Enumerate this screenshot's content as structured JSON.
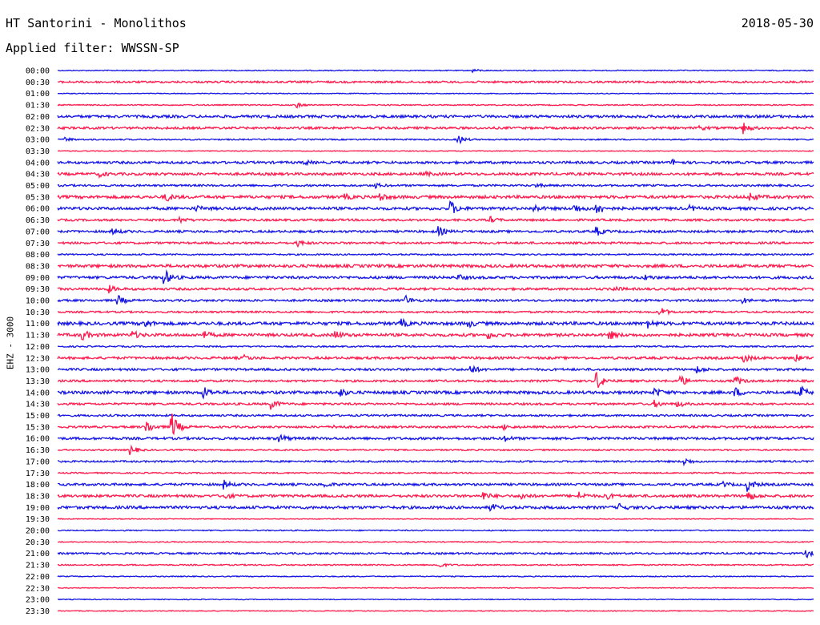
{
  "header": {
    "station": "HT Santorini - Monolithos",
    "date": "2018-05-30",
    "filter": "Applied filter: WWSSN-SP",
    "channel": "EHZ - 3000"
  },
  "colors": {
    "blue": "#1414e6",
    "red": "#ff1a4d"
  },
  "chart_data": {
    "type": "line",
    "title": "HT Santorini - Monolithos",
    "ylabel": "EHZ - 3000",
    "row_labels": [
      "00:00",
      "00:30",
      "01:00",
      "01:30",
      "02:00",
      "02:30",
      "03:00",
      "03:30",
      "04:00",
      "04:30",
      "05:00",
      "05:30",
      "06:00",
      "06:30",
      "07:00",
      "07:30",
      "08:00",
      "08:30",
      "09:00",
      "09:30",
      "10:00",
      "10:30",
      "11:00",
      "11:30",
      "12:00",
      "12:30",
      "13:00",
      "13:30",
      "14:00",
      "14:30",
      "15:00",
      "15:30",
      "16:00",
      "16:30",
      "17:00",
      "17:30",
      "18:00",
      "18:30",
      "19:00",
      "19:30",
      "20:00",
      "20:30",
      "21:00",
      "21:30",
      "22:00",
      "22:30",
      "23:00",
      "23:30"
    ],
    "row_minutes": 30,
    "noise": [
      0.6,
      1.2,
      0.5,
      0.7,
      1.6,
      1.4,
      0.8,
      0.5,
      1.5,
      1.6,
      1.2,
      1.8,
      1.7,
      1.3,
      1.4,
      1.3,
      0.9,
      1.8,
      1.6,
      1.4,
      1.3,
      1.1,
      1.9,
      1.8,
      0.9,
      1.5,
      1.4,
      1.3,
      1.8,
      1.3,
      1.2,
      1.3,
      1.5,
      0.9,
      1.1,
      0.8,
      1.4,
      1.6,
      1.7,
      0.5,
      0.7,
      0.6,
      1.1,
      0.8,
      0.6,
      0.5,
      0.5,
      0.5
    ],
    "events": [
      {
        "row": 0,
        "min": 16.5,
        "amp": 2
      },
      {
        "row": 3,
        "min": 9.5,
        "amp": 3
      },
      {
        "row": 5,
        "min": 27.2,
        "amp": 7
      },
      {
        "row": 5,
        "min": 25.5,
        "amp": 2
      },
      {
        "row": 6,
        "min": 15.9,
        "amp": 6
      },
      {
        "row": 6,
        "min": 0.3,
        "amp": 2.5
      },
      {
        "row": 8,
        "min": 9.8,
        "amp": 2.5
      },
      {
        "row": 8,
        "min": 24.4,
        "amp": 3
      },
      {
        "row": 9,
        "min": 1.7,
        "amp": 2.5
      },
      {
        "row": 9,
        "min": 14.6,
        "amp": 2
      },
      {
        "row": 10,
        "min": 12.6,
        "amp": 3
      },
      {
        "row": 10,
        "min": 19.0,
        "amp": 2
      },
      {
        "row": 11,
        "min": 4.3,
        "amp": 5
      },
      {
        "row": 11,
        "min": 11.4,
        "amp": 3
      },
      {
        "row": 11,
        "min": 12.8,
        "amp": 5
      },
      {
        "row": 11,
        "min": 27.5,
        "amp": 5
      },
      {
        "row": 12,
        "min": 15.6,
        "amp": 9
      },
      {
        "row": 12,
        "min": 18.9,
        "amp": 4
      },
      {
        "row": 12,
        "min": 20.5,
        "amp": 6
      },
      {
        "row": 12,
        "min": 21.4,
        "amp": 9
      },
      {
        "row": 12,
        "min": 25.1,
        "amp": 3
      },
      {
        "row": 12,
        "min": 5.5,
        "amp": 3
      },
      {
        "row": 13,
        "min": 4.8,
        "amp": 4
      },
      {
        "row": 13,
        "min": 17.1,
        "amp": 5
      },
      {
        "row": 14,
        "min": 2.2,
        "amp": 4
      },
      {
        "row": 14,
        "min": 15.1,
        "amp": 6
      },
      {
        "row": 14,
        "min": 21.4,
        "amp": 5
      },
      {
        "row": 15,
        "min": 9.5,
        "amp": 4
      },
      {
        "row": 18,
        "min": 4.2,
        "amp": 12
      },
      {
        "row": 18,
        "min": 15.9,
        "amp": 3
      },
      {
        "row": 18,
        "min": 23.3,
        "amp": 3
      },
      {
        "row": 19,
        "min": 2.0,
        "amp": 5
      },
      {
        "row": 19,
        "min": 22.1,
        "amp": 3
      },
      {
        "row": 20,
        "min": 2.4,
        "amp": 6
      },
      {
        "row": 20,
        "min": 13.8,
        "amp": 6
      },
      {
        "row": 20,
        "min": 27.2,
        "amp": 3
      },
      {
        "row": 21,
        "min": 23.9,
        "amp": 7
      },
      {
        "row": 22,
        "min": 3.4,
        "amp": 6
      },
      {
        "row": 22,
        "min": 13.6,
        "amp": 6
      },
      {
        "row": 22,
        "min": 16.3,
        "amp": 4
      },
      {
        "row": 22,
        "min": 23.4,
        "amp": 5
      },
      {
        "row": 23,
        "min": 1.0,
        "amp": 6
      },
      {
        "row": 23,
        "min": 3.0,
        "amp": 4
      },
      {
        "row": 23,
        "min": 5.8,
        "amp": 4
      },
      {
        "row": 23,
        "min": 11.0,
        "amp": 5
      },
      {
        "row": 23,
        "min": 17.1,
        "amp": 4
      },
      {
        "row": 23,
        "min": 21.9,
        "amp": 5
      },
      {
        "row": 25,
        "min": 27.2,
        "amp": 6
      },
      {
        "row": 25,
        "min": 29.2,
        "amp": 6
      },
      {
        "row": 25,
        "min": 7.4,
        "amp": 3
      },
      {
        "row": 26,
        "min": 16.4,
        "amp": 6
      },
      {
        "row": 26,
        "min": 25.4,
        "amp": 4
      },
      {
        "row": 27,
        "min": 21.4,
        "amp": 12
      },
      {
        "row": 27,
        "min": 24.7,
        "amp": 8
      },
      {
        "row": 27,
        "min": 26.9,
        "amp": 6
      },
      {
        "row": 28,
        "min": 5.8,
        "amp": 7
      },
      {
        "row": 28,
        "min": 11.2,
        "amp": 5
      },
      {
        "row": 28,
        "min": 23.7,
        "amp": 5
      },
      {
        "row": 28,
        "min": 26.9,
        "amp": 5
      },
      {
        "row": 28,
        "min": 29.5,
        "amp": 7
      },
      {
        "row": 29,
        "min": 8.5,
        "amp": 6
      },
      {
        "row": 29,
        "min": 23.7,
        "amp": 4
      },
      {
        "row": 29,
        "min": 24.6,
        "amp": 4
      },
      {
        "row": 31,
        "min": 3.5,
        "amp": 10
      },
      {
        "row": 31,
        "min": 4.5,
        "amp": 20
      },
      {
        "row": 31,
        "min": 17.7,
        "amp": 3
      },
      {
        "row": 31,
        "min": 11.0,
        "amp": 2
      },
      {
        "row": 32,
        "min": 8.8,
        "amp": 6
      },
      {
        "row": 32,
        "min": 17.7,
        "amp": 4
      },
      {
        "row": 33,
        "min": 2.9,
        "amp": 6
      },
      {
        "row": 34,
        "min": 24.9,
        "amp": 4
      },
      {
        "row": 36,
        "min": 6.6,
        "amp": 5
      },
      {
        "row": 36,
        "min": 10.6,
        "amp": 3
      },
      {
        "row": 36,
        "min": 27.4,
        "amp": 8
      },
      {
        "row": 36,
        "min": 26.4,
        "amp": 3
      },
      {
        "row": 37,
        "min": 6.6,
        "amp": 4
      },
      {
        "row": 37,
        "min": 16.9,
        "amp": 5
      },
      {
        "row": 37,
        "min": 18.4,
        "amp": 4
      },
      {
        "row": 37,
        "min": 20.7,
        "amp": 4
      },
      {
        "row": 37,
        "min": 21.7,
        "amp": 5
      },
      {
        "row": 37,
        "min": 27.4,
        "amp": 6
      },
      {
        "row": 38,
        "min": 17.2,
        "amp": 4
      },
      {
        "row": 38,
        "min": 22.3,
        "amp": 4
      },
      {
        "row": 42,
        "min": 29.7,
        "amp": 5
      },
      {
        "row": 43,
        "min": 15.1,
        "amp": 4
      }
    ]
  }
}
